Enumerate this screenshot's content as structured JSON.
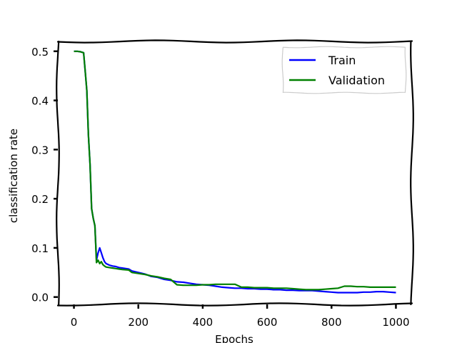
{
  "chart_data": {
    "type": "line",
    "title": "",
    "xlabel": "Epochs",
    "ylabel": "classification rate",
    "xlim": [
      -50,
      1050
    ],
    "ylim": [
      -0.015,
      0.52
    ],
    "xticks": [
      0,
      200,
      400,
      600,
      800,
      1000
    ],
    "yticks": [
      0.0,
      0.1,
      0.2,
      0.3,
      0.4,
      0.5
    ],
    "xtick_labels": [
      "0",
      "200",
      "400",
      "600",
      "800",
      "1000"
    ],
    "ytick_labels": [
      "0.0",
      "0.1",
      "0.2",
      "0.3",
      "0.4",
      "0.5"
    ],
    "grid": false,
    "legend": {
      "position": "top-right"
    },
    "style": "xkcd-like hand-drawn frame",
    "series": [
      {
        "name": "Train",
        "color": "#0000ff",
        "x": [
          0,
          10,
          20,
          30,
          35,
          40,
          45,
          50,
          55,
          60,
          65,
          70,
          75,
          80,
          85,
          90,
          95,
          100,
          110,
          120,
          130,
          140,
          150,
          170,
          180,
          200,
          220,
          240,
          260,
          280,
          300,
          320,
          340,
          360,
          380,
          400,
          420,
          440,
          460,
          480,
          500,
          520,
          540,
          560,
          580,
          600,
          620,
          640,
          660,
          680,
          700,
          720,
          740,
          760,
          780,
          800,
          820,
          840,
          860,
          880,
          900,
          920,
          940,
          960,
          980,
          1000
        ],
        "y": [
          0.5,
          0.5,
          0.499,
          0.497,
          0.46,
          0.42,
          0.33,
          0.27,
          0.18,
          0.16,
          0.145,
          0.075,
          0.09,
          0.1,
          0.09,
          0.08,
          0.072,
          0.068,
          0.065,
          0.063,
          0.062,
          0.06,
          0.059,
          0.057,
          0.053,
          0.05,
          0.047,
          0.042,
          0.04,
          0.036,
          0.034,
          0.031,
          0.03,
          0.028,
          0.026,
          0.025,
          0.024,
          0.022,
          0.02,
          0.019,
          0.018,
          0.018,
          0.017,
          0.017,
          0.016,
          0.016,
          0.015,
          0.015,
          0.014,
          0.014,
          0.013,
          0.013,
          0.013,
          0.012,
          0.011,
          0.01,
          0.009,
          0.009,
          0.009,
          0.009,
          0.01,
          0.01,
          0.011,
          0.011,
          0.01,
          0.009
        ]
      },
      {
        "name": "Validation",
        "color": "#008000",
        "x": [
          0,
          10,
          20,
          30,
          35,
          40,
          45,
          50,
          55,
          60,
          65,
          70,
          75,
          80,
          85,
          90,
          95,
          100,
          110,
          120,
          130,
          140,
          150,
          170,
          180,
          200,
          220,
          240,
          260,
          280,
          300,
          320,
          340,
          360,
          380,
          400,
          420,
          440,
          460,
          480,
          500,
          520,
          540,
          560,
          580,
          600,
          620,
          640,
          660,
          680,
          700,
          720,
          740,
          760,
          780,
          800,
          820,
          840,
          860,
          880,
          900,
          920,
          940,
          960,
          980,
          1000
        ],
        "y": [
          0.5,
          0.5,
          0.499,
          0.497,
          0.46,
          0.42,
          0.33,
          0.27,
          0.18,
          0.16,
          0.145,
          0.07,
          0.075,
          0.068,
          0.072,
          0.066,
          0.063,
          0.061,
          0.06,
          0.059,
          0.058,
          0.057,
          0.056,
          0.055,
          0.05,
          0.048,
          0.046,
          0.043,
          0.041,
          0.038,
          0.036,
          0.025,
          0.024,
          0.024,
          0.024,
          0.025,
          0.025,
          0.026,
          0.026,
          0.026,
          0.026,
          0.02,
          0.02,
          0.019,
          0.019,
          0.019,
          0.018,
          0.018,
          0.018,
          0.017,
          0.016,
          0.015,
          0.015,
          0.015,
          0.016,
          0.017,
          0.018,
          0.022,
          0.022,
          0.021,
          0.021,
          0.02,
          0.02,
          0.02,
          0.02,
          0.02
        ]
      }
    ]
  }
}
